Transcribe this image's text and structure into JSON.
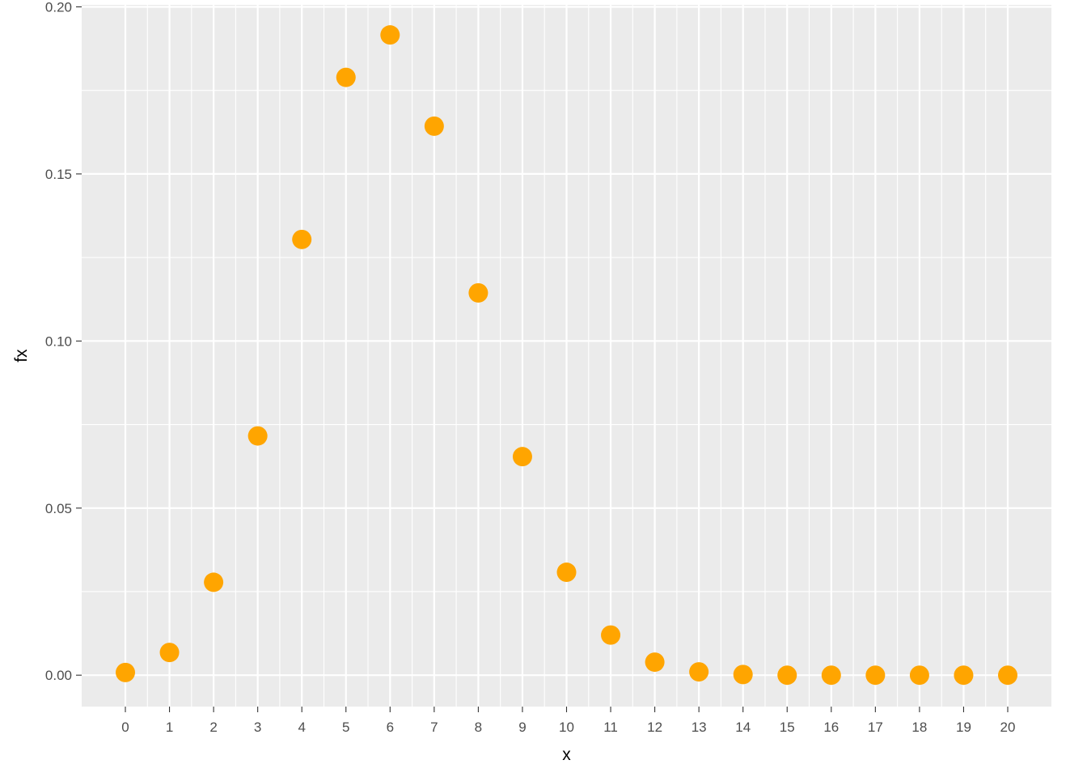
{
  "chart_data": {
    "type": "scatter",
    "title": "",
    "xlabel": "x",
    "ylabel": "fx",
    "x": [
      0,
      1,
      2,
      3,
      4,
      5,
      6,
      7,
      8,
      9,
      10,
      11,
      12,
      13,
      14,
      15,
      16,
      17,
      18,
      19,
      20
    ],
    "y": [
      0.0008,
      0.0068,
      0.0278,
      0.0716,
      0.1304,
      0.1789,
      0.1916,
      0.1643,
      0.1144,
      0.0654,
      0.0308,
      0.012,
      0.0039,
      0.001,
      0.0002,
      0.0,
      0.0,
      0.0,
      0.0,
      0.0,
      0.0
    ],
    "xticks": [
      "0",
      "1",
      "2",
      "3",
      "4",
      "5",
      "6",
      "7",
      "8",
      "9",
      "10",
      "11",
      "12",
      "13",
      "14",
      "15",
      "16",
      "17",
      "18",
      "19",
      "20"
    ],
    "yticks": [
      "0.00",
      "0.05",
      "0.10",
      "0.15",
      "0.20"
    ],
    "xlim": [
      -0.99,
      20.99
    ],
    "ylim": [
      -0.0094,
      0.2006
    ],
    "grid": true,
    "point_color": "#FFA500",
    "panel_color": "#EBEBEB",
    "grid_color": "#FFFFFF"
  }
}
